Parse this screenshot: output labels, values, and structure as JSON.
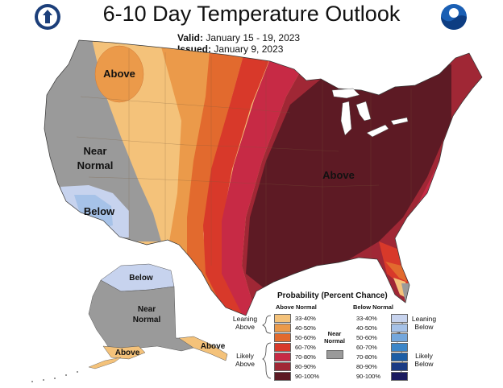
{
  "title": "6-10 Day Temperature Outlook",
  "valid_label": "Valid:",
  "valid_value": "January 15 - 19, 2023",
  "issued_label": "Issued:",
  "issued_value": "January 9, 2023",
  "logos": {
    "left": "NOAA dept-of-commerce seal",
    "right": "NOAA logo"
  },
  "map_labels": {
    "above_nw": "Above",
    "near_normal_line1": "Near",
    "near_normal_line2": "Normal",
    "below_sw": "Below",
    "above_east": "Above",
    "ak_below": "Below",
    "ak_near1": "Near",
    "ak_near2": "Normal",
    "ak_above_sw": "Above",
    "ak_above_se": "Above"
  },
  "legend": {
    "title": "Probability (Percent Chance)",
    "above_header": "Above Normal",
    "below_header": "Below Normal",
    "above_rows": [
      {
        "label": "33-40%",
        "color": "#f4c27a"
      },
      {
        "label": "40-50%",
        "color": "#eb9a4a"
      },
      {
        "label": "50-60%",
        "color": "#e26a2e"
      },
      {
        "label": "60-70%",
        "color": "#d8392a"
      },
      {
        "label": "70-80%",
        "color": "#c72a45"
      },
      {
        "label": "80-90%",
        "color": "#a02735"
      },
      {
        "label": "90-100%",
        "color": "#5d1a24"
      }
    ],
    "below_rows": [
      {
        "label": "33-40%",
        "color": "#c7d3ee"
      },
      {
        "label": "40-50%",
        "color": "#a6c2e8"
      },
      {
        "label": "50-60%",
        "color": "#74a7dc"
      },
      {
        "label": "60-70%",
        "color": "#3c86c8"
      },
      {
        "label": "70-80%",
        "color": "#1d5ea5"
      },
      {
        "label": "80-90%",
        "color": "#1b3b84"
      },
      {
        "label": "90-100%",
        "color": "#1a1a5e"
      }
    ],
    "near_normal_line1": "Near",
    "near_normal_line2": "Normal",
    "near_normal_color": "#9a9a9a",
    "leaning_above_1": "Leaning",
    "leaning_above_2": "Above",
    "likely_above_1": "Likely",
    "likely_above_2": "Above",
    "leaning_below_1": "Leaning",
    "leaning_below_2": "Below",
    "likely_below_1": "Likely",
    "likely_below_2": "Below"
  }
}
